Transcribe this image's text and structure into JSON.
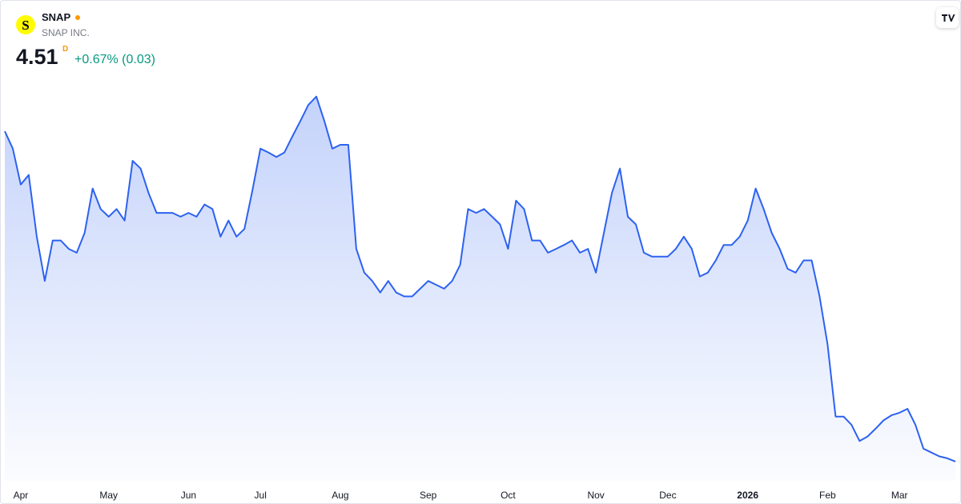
{
  "header": {
    "logo": "S",
    "symbol": "SNAP",
    "company": "SNAP INC.",
    "price": "4.51",
    "interval": "D",
    "change": "+0.67% (0.03)"
  },
  "chart_data": {
    "type": "area",
    "color": "#2d62f0",
    "ylim": [
      4.21,
      10.56
    ],
    "categories": [
      null,
      null,
      "Apr",
      null,
      null,
      null,
      null,
      null,
      null,
      null,
      null,
      null,
      null,
      "May",
      null,
      null,
      null,
      null,
      null,
      null,
      null,
      null,
      null,
      "Jun",
      null,
      null,
      null,
      null,
      null,
      null,
      null,
      null,
      "Jul",
      null,
      null,
      null,
      null,
      null,
      null,
      null,
      null,
      null,
      "Aug",
      null,
      null,
      null,
      null,
      null,
      null,
      null,
      null,
      null,
      null,
      "Sep",
      null,
      null,
      null,
      null,
      null,
      null,
      null,
      null,
      null,
      "Oct",
      null,
      null,
      null,
      null,
      null,
      null,
      null,
      null,
      null,
      null,
      "Nov",
      null,
      null,
      null,
      null,
      null,
      null,
      null,
      null,
      "Dec",
      null,
      null,
      null,
      null,
      null,
      null,
      null,
      null,
      null,
      "2026",
      null,
      null,
      null,
      null,
      null,
      null,
      null,
      null,
      null,
      "Feb",
      null,
      null,
      null,
      null,
      null,
      null,
      null,
      null,
      "Mar",
      null,
      null,
      null,
      null,
      null,
      null,
      null
    ],
    "values": [
      9.65,
      9.38,
      8.82,
      8.97,
      8.01,
      7.32,
      7.95,
      7.95,
      7.82,
      7.76,
      8.07,
      8.76,
      8.44,
      8.32,
      8.44,
      8.26,
      9.19,
      9.07,
      8.69,
      8.38,
      8.38,
      8.38,
      8.32,
      8.38,
      8.32,
      8.51,
      8.44,
      8.01,
      8.26,
      8.01,
      8.13,
      8.73,
      9.38,
      9.32,
      9.25,
      9.32,
      9.57,
      9.81,
      10.06,
      10.19,
      9.81,
      9.38,
      9.44,
      9.44,
      7.82,
      7.45,
      7.32,
      7.14,
      7.32,
      7.14,
      7.08,
      7.08,
      7.2,
      7.32,
      7.26,
      7.2,
      7.32,
      7.57,
      8.44,
      8.38,
      8.44,
      8.32,
      8.2,
      7.82,
      8.57,
      8.44,
      7.95,
      7.95,
      7.76,
      7.82,
      7.88,
      7.95,
      7.76,
      7.82,
      7.45,
      8.07,
      8.69,
      9.07,
      8.32,
      8.2,
      7.76,
      7.7,
      7.7,
      7.7,
      7.82,
      8.01,
      7.82,
      7.39,
      7.45,
      7.64,
      7.88,
      7.88,
      8.01,
      8.26,
      8.76,
      8.44,
      8.07,
      7.82,
      7.51,
      7.45,
      7.64,
      7.64,
      7.08,
      6.33,
      5.21,
      5.21,
      5.08,
      4.83,
      4.9,
      5.02,
      5.15,
      5.23,
      5.27,
      5.33,
      5.08,
      4.71,
      4.65,
      4.59,
      4.56,
      4.51
    ]
  }
}
